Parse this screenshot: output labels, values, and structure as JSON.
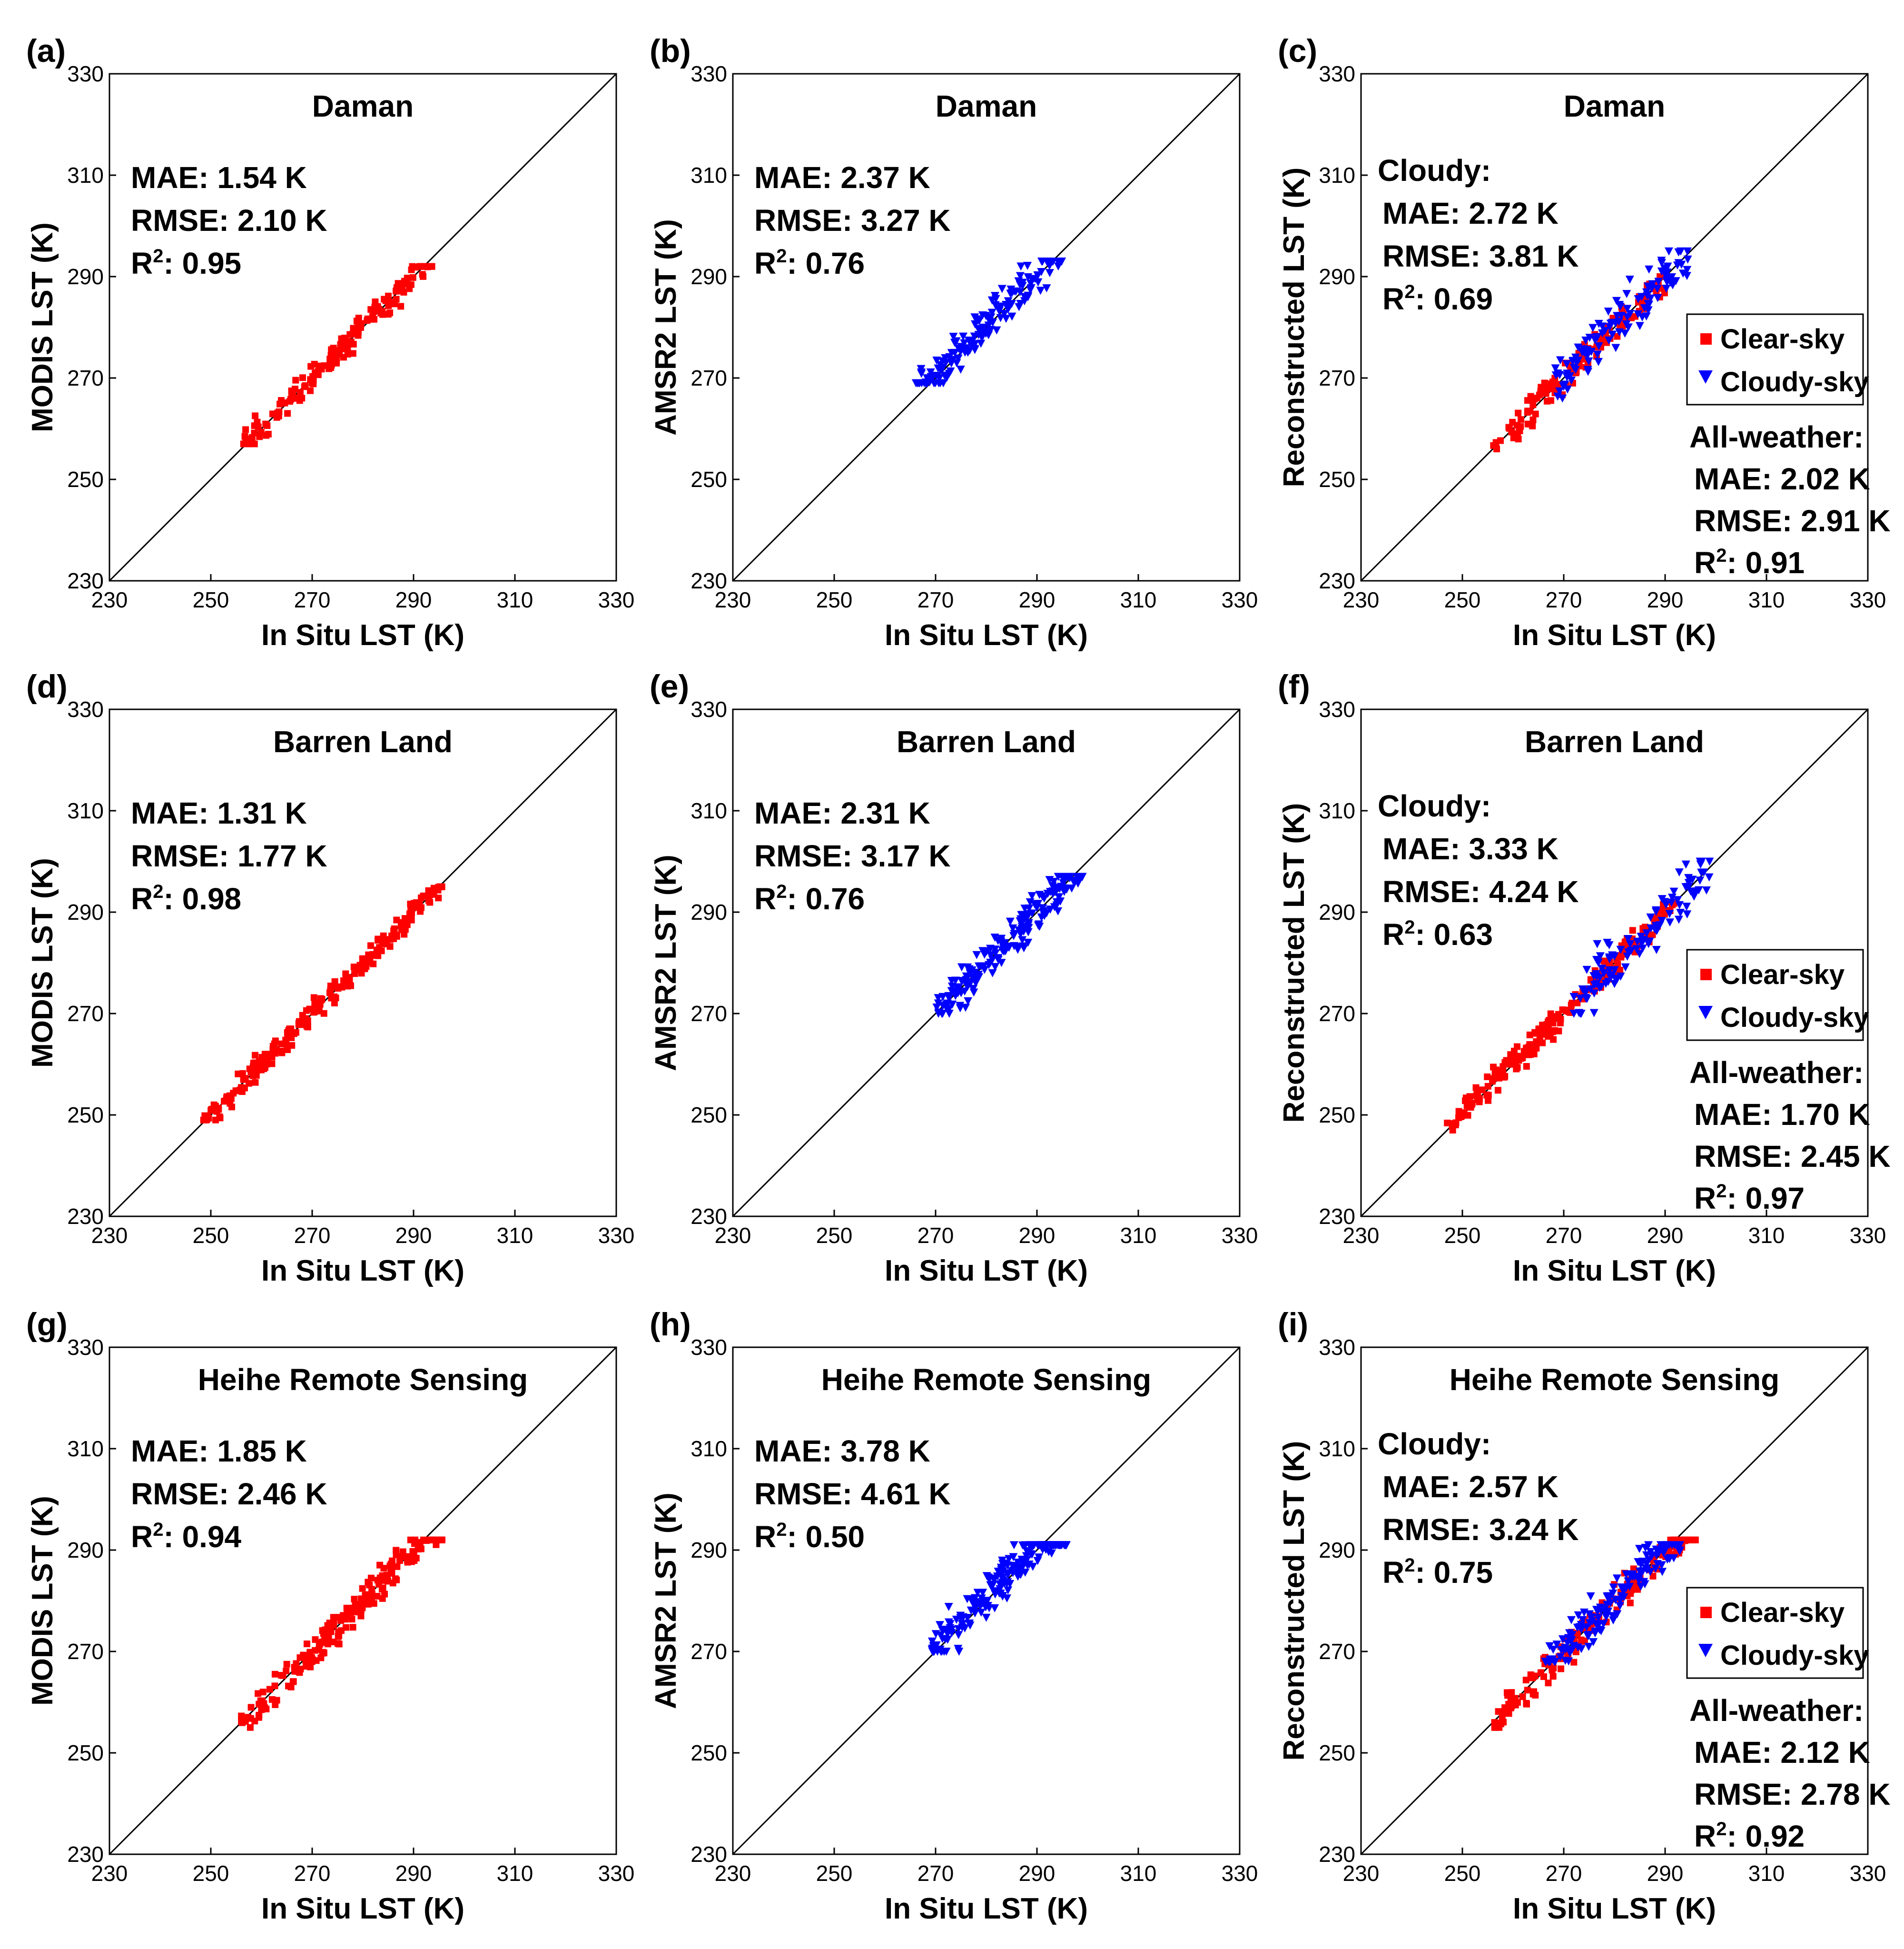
{
  "chart_data": [
    {
      "panel_label": "(a)",
      "type": "scatter",
      "title": "Daman",
      "xlabel": "In Situ LST (K)",
      "ylabel": "MODIS LST (K)",
      "xlim": [
        230,
        330
      ],
      "ylim": [
        230,
        330
      ],
      "xticks": [
        "230",
        "250",
        "270",
        "290",
        "310",
        "330"
      ],
      "yticks": [
        "230",
        "250",
        "270",
        "290",
        "310",
        "330"
      ],
      "stats_header": "",
      "stats": [
        "MAE: 1.54 K",
        "RMSE: 2.10 K",
        "R²: 0.95"
      ],
      "series": [
        {
          "name": "MODIS",
          "marker": "square",
          "color": "#ff0000",
          "x_range": [
            256,
            294
          ],
          "y_range": [
            257,
            292
          ],
          "n": 160,
          "bias": 0.0,
          "spread": 1.9,
          "seed": 11
        }
      ]
    },
    {
      "panel_label": "(b)",
      "type": "scatter",
      "title": "Daman",
      "xlabel": "In Situ LST (K)",
      "ylabel": "AMSR2 LST (K)",
      "xlim": [
        230,
        330
      ],
      "ylim": [
        230,
        330
      ],
      "xticks": [
        "230",
        "250",
        "270",
        "290",
        "310",
        "330"
      ],
      "yticks": [
        "230",
        "250",
        "270",
        "290",
        "310",
        "330"
      ],
      "stats_header": "",
      "stats": [
        "MAE: 2.37 K",
        "RMSE: 3.27 K",
        "R²: 0.76"
      ],
      "series": [
        {
          "name": "AMSR2",
          "marker": "triangle",
          "color": "#0000ff",
          "x_range": [
            266,
            295
          ],
          "y_range": [
            269,
            293
          ],
          "n": 170,
          "bias": 0.5,
          "spread": 3.0,
          "seed": 23
        }
      ]
    },
    {
      "panel_label": "(c)",
      "type": "scatter",
      "title": "Daman",
      "xlabel": "In Situ LST (K)",
      "ylabel": "Reconstructed LST (K)",
      "xlim": [
        230,
        330
      ],
      "ylim": [
        230,
        330
      ],
      "xticks": [
        "230",
        "250",
        "270",
        "290",
        "310",
        "330"
      ],
      "yticks": [
        "230",
        "250",
        "270",
        "290",
        "310",
        "330"
      ],
      "stats_header": "Cloudy:",
      "stats": [
        "MAE: 2.72 K",
        "RMSE: 3.81 K",
        "R²: 0.69"
      ],
      "legend": [
        "Clear-sky",
        "Cloudy-sky"
      ],
      "stats2_header": "All-weather:",
      "stats2": [
        "MAE: 2.02 K",
        "RMSE: 2.91 K",
        "R²: 0.91"
      ],
      "series": [
        {
          "name": "Clear-sky",
          "marker": "square",
          "color": "#ff0000",
          "x_range": [
            256,
            290
          ],
          "y_range": [
            256,
            290
          ],
          "n": 130,
          "bias": 0.0,
          "spread": 2.0,
          "seed": 31
        },
        {
          "name": "Cloudy-sky",
          "marker": "triangle",
          "color": "#0000ff",
          "x_range": [
            268,
            295
          ],
          "y_range": [
            266,
            295
          ],
          "n": 120,
          "bias": 0.0,
          "spread": 3.3,
          "seed": 37
        }
      ]
    },
    {
      "panel_label": "(d)",
      "type": "scatter",
      "title": "Barren Land",
      "xlabel": "In Situ LST (K)",
      "ylabel": "MODIS LST (K)",
      "xlim": [
        230,
        330
      ],
      "ylim": [
        230,
        330
      ],
      "xticks": [
        "230",
        "250",
        "270",
        "290",
        "310",
        "330"
      ],
      "yticks": [
        "230",
        "250",
        "270",
        "290",
        "310",
        "330"
      ],
      "stats_header": "",
      "stats": [
        "MAE: 1.31 K",
        "RMSE: 1.77 K",
        "R²: 0.98"
      ],
      "series": [
        {
          "name": "MODIS",
          "marker": "square",
          "color": "#ff0000",
          "x_range": [
            248,
            296
          ],
          "y_range": [
            249,
            295
          ],
          "n": 240,
          "bias": 0.0,
          "spread": 1.6,
          "seed": 41
        }
      ]
    },
    {
      "panel_label": "(e)",
      "type": "scatter",
      "title": "Barren Land",
      "xlabel": "In Situ LST (K)",
      "ylabel": "AMSR2 LST (K)",
      "xlim": [
        230,
        330
      ],
      "ylim": [
        230,
        330
      ],
      "xticks": [
        "230",
        "250",
        "270",
        "290",
        "310",
        "330"
      ],
      "yticks": [
        "230",
        "250",
        "270",
        "290",
        "310",
        "330"
      ],
      "stats_header": "",
      "stats": [
        "MAE: 2.31 K",
        "RMSE: 3.17 K",
        "R²: 0.76"
      ],
      "series": [
        {
          "name": "AMSR2",
          "marker": "triangle",
          "color": "#0000ff",
          "x_range": [
            270,
            299
          ],
          "y_range": [
            270,
            297
          ],
          "n": 190,
          "bias": 0.3,
          "spread": 3.0,
          "seed": 53
        }
      ]
    },
    {
      "panel_label": "(f)",
      "type": "scatter",
      "title": "Barren Land",
      "xlabel": "In Situ LST (K)",
      "ylabel": "Reconstructed LST (K)",
      "xlim": [
        230,
        330
      ],
      "ylim": [
        230,
        330
      ],
      "xticks": [
        "230",
        "250",
        "270",
        "290",
        "310",
        "330"
      ],
      "yticks": [
        "230",
        "250",
        "270",
        "290",
        "310",
        "330"
      ],
      "stats_header": "Cloudy:",
      "stats": [
        "MAE: 3.33 K",
        "RMSE: 4.24 K",
        "R²: 0.63"
      ],
      "legend": [
        "Clear-sky",
        "Cloudy-sky"
      ],
      "stats2_header": "All-weather:",
      "stats2": [
        "MAE: 1.70 K",
        "RMSE: 2.45 K",
        "R²: 0.97"
      ],
      "series": [
        {
          "name": "Clear-sky",
          "marker": "square",
          "color": "#ff0000",
          "x_range": [
            247,
            292
          ],
          "y_range": [
            247,
            292
          ],
          "n": 230,
          "bias": 0.0,
          "spread": 1.8,
          "seed": 61
        },
        {
          "name": "Cloudy-sky",
          "marker": "triangle",
          "color": "#0000ff",
          "x_range": [
            272,
            299
          ],
          "y_range": [
            270,
            300
          ],
          "n": 110,
          "bias": 0.0,
          "spread": 3.8,
          "seed": 67
        }
      ]
    },
    {
      "panel_label": "(g)",
      "type": "scatter",
      "title": "Heihe Remote Sensing",
      "xlabel": "In Situ LST (K)",
      "ylabel": "MODIS LST (K)",
      "xlim": [
        230,
        330
      ],
      "ylim": [
        230,
        330
      ],
      "xticks": [
        "230",
        "250",
        "270",
        "290",
        "310",
        "330"
      ],
      "yticks": [
        "230",
        "250",
        "270",
        "290",
        "310",
        "330"
      ],
      "stats_header": "",
      "stats": [
        "MAE: 1.85 K",
        "RMSE: 2.46 K",
        "R²: 0.94"
      ],
      "series": [
        {
          "name": "MODIS",
          "marker": "square",
          "color": "#ff0000",
          "x_range": [
            256,
            296
          ],
          "y_range": [
            255,
            292
          ],
          "n": 200,
          "bias": -0.3,
          "spread": 2.2,
          "seed": 71
        }
      ]
    },
    {
      "panel_label": "(h)",
      "type": "scatter",
      "title": "Heihe Remote Sensing",
      "xlabel": "In Situ LST (K)",
      "ylabel": "AMSR2 LST (K)",
      "xlim": [
        230,
        330
      ],
      "ylim": [
        230,
        330
      ],
      "xticks": [
        "230",
        "250",
        "270",
        "290",
        "310",
        "330"
      ],
      "yticks": [
        "230",
        "250",
        "270",
        "290",
        "310",
        "330"
      ],
      "stats_header": "",
      "stats": [
        "MAE: 3.78 K",
        "RMSE: 4.61 K",
        "R²: 0.50"
      ],
      "series": [
        {
          "name": "AMSR2",
          "marker": "triangle",
          "color": "#0000ff",
          "x_range": [
            269,
            296
          ],
          "y_range": [
            270,
            291
          ],
          "n": 220,
          "bias": 1.0,
          "spread": 3.2,
          "seed": 83
        }
      ]
    },
    {
      "panel_label": "(i)",
      "type": "scatter",
      "title": "Heihe Remote Sensing",
      "xlabel": "In Situ LST (K)",
      "ylabel": "Reconstructed LST (K)",
      "xlim": [
        230,
        330
      ],
      "ylim": [
        230,
        330
      ],
      "xticks": [
        "230",
        "250",
        "270",
        "290",
        "310",
        "330"
      ],
      "yticks": [
        "230",
        "250",
        "270",
        "290",
        "310",
        "330"
      ],
      "stats_header": "Cloudy:",
      "stats": [
        "MAE: 2.57 K",
        "RMSE: 3.24 K",
        "R²: 0.75"
      ],
      "legend": [
        "Clear-sky",
        "Cloudy-sky"
      ],
      "stats2_header": "All-weather:",
      "stats2": [
        "MAE: 2.12 K",
        "RMSE: 2.78 K",
        "R²: 0.92"
      ],
      "series": [
        {
          "name": "Clear-sky",
          "marker": "square",
          "color": "#ff0000",
          "x_range": [
            256,
            296
          ],
          "y_range": [
            255,
            292
          ],
          "n": 170,
          "bias": -0.3,
          "spread": 2.2,
          "seed": 97
        },
        {
          "name": "Cloudy-sky",
          "marker": "triangle",
          "color": "#0000ff",
          "x_range": [
            266,
            293
          ],
          "y_range": [
            268,
            291
          ],
          "n": 150,
          "bias": 0.5,
          "spread": 3.0,
          "seed": 101
        }
      ]
    }
  ]
}
